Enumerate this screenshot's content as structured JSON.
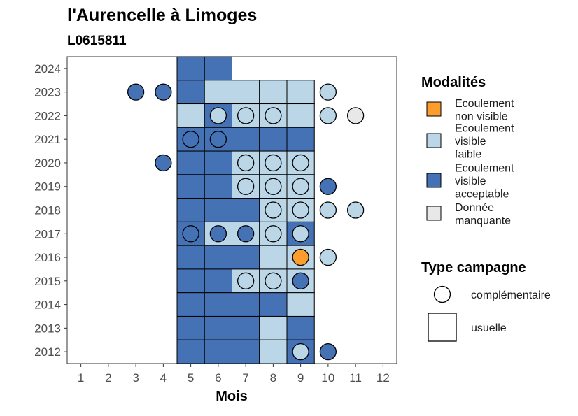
{
  "chart_data": {
    "type": "heatmap",
    "title": "l'Aurencelle à Limoges",
    "subtitle": "L0615811",
    "xlabel": "Mois",
    "ylabel": "",
    "x_ticks": [
      1,
      2,
      3,
      4,
      5,
      6,
      7,
      8,
      9,
      10,
      11,
      12
    ],
    "y_ticks": [
      2012,
      2013,
      2014,
      2015,
      2016,
      2017,
      2018,
      2019,
      2020,
      2021,
      2022,
      2023,
      2024
    ],
    "xlim": [
      0.5,
      12.5
    ],
    "ylim": [
      2011.5,
      2024.5
    ],
    "grid": false,
    "legend_placement": "right",
    "modalites_legend": {
      "title": "Modalités",
      "entries": [
        {
          "key": "nv",
          "lines": [
            "Ecoulement",
            "non visible"
          ],
          "color": "#FC9D2E"
        },
        {
          "key": "vf",
          "lines": [
            "Ecoulement",
            "visible",
            "faible"
          ],
          "color": "#BBD6E6"
        },
        {
          "key": "va",
          "lines": [
            "Ecoulement",
            "visible",
            "acceptable"
          ],
          "color": "#4571B5"
        },
        {
          "key": "dm",
          "lines": [
            "Donnée",
            "manquante"
          ],
          "color": "#E8E8E8"
        }
      ]
    },
    "campagne_legend": {
      "title": "Type campagne",
      "entries": [
        {
          "shape": "circle",
          "label": "complémentaire"
        },
        {
          "shape": "square",
          "label": "usuelle"
        }
      ]
    },
    "usuelle": [
      {
        "year": 2024,
        "months": {
          "5": "va",
          "6": "va"
        }
      },
      {
        "year": 2023,
        "months": {
          "5": "va",
          "6": "vf",
          "7": "vf",
          "8": "vf",
          "9": "vf"
        }
      },
      {
        "year": 2022,
        "months": {
          "5": "vf",
          "6": "va",
          "7": "vf",
          "8": "vf",
          "9": "vf"
        }
      },
      {
        "year": 2021,
        "months": {
          "5": "va",
          "6": "va",
          "7": "va",
          "8": "va",
          "9": "va"
        }
      },
      {
        "year": 2020,
        "months": {
          "5": "va",
          "6": "va",
          "7": "vf",
          "8": "vf",
          "9": "vf"
        }
      },
      {
        "year": 2019,
        "months": {
          "5": "va",
          "6": "va",
          "7": "vf",
          "8": "vf",
          "9": "vf"
        }
      },
      {
        "year": 2018,
        "months": {
          "5": "va",
          "6": "va",
          "7": "va",
          "8": "vf",
          "9": "vf"
        }
      },
      {
        "year": 2017,
        "months": {
          "5": "va",
          "6": "vf",
          "7": "vf",
          "8": "vf",
          "9": "va"
        }
      },
      {
        "year": 2016,
        "months": {
          "5": "va",
          "6": "va",
          "7": "va",
          "8": "vf",
          "9": "vf"
        }
      },
      {
        "year": 2015,
        "months": {
          "5": "va",
          "6": "va",
          "7": "vf",
          "8": "vf",
          "9": "vf"
        }
      },
      {
        "year": 2014,
        "months": {
          "5": "va",
          "6": "va",
          "7": "va",
          "8": "va",
          "9": "vf"
        }
      },
      {
        "year": 2013,
        "months": {
          "5": "va",
          "6": "va",
          "7": "va",
          "8": "vf",
          "9": "va"
        }
      },
      {
        "year": 2012,
        "months": {
          "5": "va",
          "6": "va",
          "7": "va",
          "8": "vf",
          "9": "va"
        }
      }
    ],
    "complementaire": [
      {
        "year": 2023,
        "month": 3,
        "mod": "va"
      },
      {
        "year": 2023,
        "month": 4,
        "mod": "va"
      },
      {
        "year": 2023,
        "month": 10,
        "mod": "vf"
      },
      {
        "year": 2022,
        "month": 6,
        "mod": "vf"
      },
      {
        "year": 2022,
        "month": 7,
        "mod": "vf"
      },
      {
        "year": 2022,
        "month": 8,
        "mod": "vf"
      },
      {
        "year": 2022,
        "month": 10,
        "mod": "vf"
      },
      {
        "year": 2022,
        "month": 11,
        "mod": "dm"
      },
      {
        "year": 2021,
        "month": 5,
        "mod": "va"
      },
      {
        "year": 2021,
        "month": 6,
        "mod": "va"
      },
      {
        "year": 2020,
        "month": 4,
        "mod": "va"
      },
      {
        "year": 2020,
        "month": 7,
        "mod": "vf"
      },
      {
        "year": 2020,
        "month": 8,
        "mod": "vf"
      },
      {
        "year": 2020,
        "month": 9,
        "mod": "vf"
      },
      {
        "year": 2019,
        "month": 7,
        "mod": "vf"
      },
      {
        "year": 2019,
        "month": 8,
        "mod": "vf"
      },
      {
        "year": 2019,
        "month": 9,
        "mod": "vf"
      },
      {
        "year": 2019,
        "month": 10,
        "mod": "va"
      },
      {
        "year": 2018,
        "month": 8,
        "mod": "vf"
      },
      {
        "year": 2018,
        "month": 9,
        "mod": "vf"
      },
      {
        "year": 2018,
        "month": 10,
        "mod": "vf"
      },
      {
        "year": 2018,
        "month": 11,
        "mod": "vf"
      },
      {
        "year": 2017,
        "month": 5,
        "mod": "va"
      },
      {
        "year": 2017,
        "month": 6,
        "mod": "va"
      },
      {
        "year": 2017,
        "month": 7,
        "mod": "va"
      },
      {
        "year": 2017,
        "month": 8,
        "mod": "vf"
      },
      {
        "year": 2017,
        "month": 9,
        "mod": "vf"
      },
      {
        "year": 2016,
        "month": 9,
        "mod": "nv"
      },
      {
        "year": 2016,
        "month": 10,
        "mod": "vf"
      },
      {
        "year": 2015,
        "month": 7,
        "mod": "vf"
      },
      {
        "year": 2015,
        "month": 8,
        "mod": "vf"
      },
      {
        "year": 2015,
        "month": 9,
        "mod": "va"
      },
      {
        "year": 2012,
        "month": 9,
        "mod": "vf"
      },
      {
        "year": 2012,
        "month": 10,
        "mod": "va"
      }
    ]
  }
}
